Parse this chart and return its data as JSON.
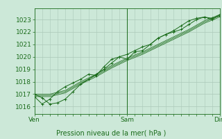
{
  "title": "",
  "xlabel": "Pression niveau de la mer( hPa )",
  "ylabel": "",
  "bg_color": "#cce8d8",
  "plot_bg_color": "#cce8d8",
  "grid_color": "#aac8b8",
  "line_color": "#1a6b1a",
  "tick_color": "#1a6b1a",
  "label_color": "#1a6b1a",
  "yticks": [
    1016,
    1017,
    1018,
    1019,
    1020,
    1021,
    1022,
    1023
  ],
  "ylim": [
    1015.4,
    1023.9
  ],
  "xlim": [
    0,
    48
  ],
  "xtick_positions": [
    0,
    24,
    48
  ],
  "xtick_labels": [
    "Ven",
    "Sam",
    "Dim"
  ],
  "series": [
    {
      "x": [
        0,
        2,
        4,
        6,
        8,
        10,
        12,
        14,
        16,
        18,
        20,
        22,
        24,
        26,
        28,
        30,
        32,
        34,
        36,
        38,
        40,
        42,
        44,
        46,
        48
      ],
      "y": [
        1017.0,
        1016.7,
        1016.2,
        1016.3,
        1016.6,
        1017.2,
        1017.8,
        1018.2,
        1018.6,
        1019.0,
        1019.5,
        1020.0,
        1019.8,
        1020.4,
        1020.5,
        1021.0,
        1021.5,
        1021.8,
        1022.1,
        1022.5,
        1022.9,
        1023.1,
        1023.2,
        1023.0,
        1023.4
      ],
      "marker": "+"
    },
    {
      "x": [
        0,
        2,
        4,
        6,
        8,
        10,
        12,
        14,
        16,
        18,
        20,
        22,
        24,
        26,
        28,
        30,
        32,
        34,
        36,
        38,
        40,
        42,
        44,
        46,
        48
      ],
      "y": [
        1016.8,
        1016.2,
        1016.6,
        1017.2,
        1017.6,
        1017.9,
        1018.2,
        1018.6,
        1018.5,
        1019.2,
        1019.8,
        1020.0,
        1020.2,
        1020.5,
        1020.8,
        1021.0,
        1021.5,
        1021.8,
        1022.0,
        1022.2,
        1022.6,
        1023.0,
        1023.2,
        1023.1,
        1023.3
      ],
      "marker": "+"
    },
    {
      "x": [
        0,
        4,
        8,
        12,
        16,
        20,
        24,
        28,
        32,
        36,
        40,
        44,
        48
      ],
      "y": [
        1016.9,
        1016.9,
        1017.2,
        1017.9,
        1018.5,
        1019.2,
        1019.8,
        1020.3,
        1020.9,
        1021.5,
        1022.1,
        1022.8,
        1023.3
      ],
      "marker": null
    },
    {
      "x": [
        0,
        4,
        8,
        12,
        16,
        20,
        24,
        28,
        32,
        36,
        40,
        44,
        48
      ],
      "y": [
        1016.8,
        1016.8,
        1017.1,
        1017.8,
        1018.4,
        1019.1,
        1019.7,
        1020.2,
        1020.8,
        1021.4,
        1022.0,
        1022.7,
        1023.2
      ],
      "marker": null
    },
    {
      "x": [
        0,
        4,
        8,
        12,
        16,
        20,
        24,
        28,
        32,
        36,
        40,
        44,
        48
      ],
      "y": [
        1017.0,
        1017.0,
        1017.3,
        1018.0,
        1018.6,
        1019.3,
        1019.9,
        1020.4,
        1021.0,
        1021.6,
        1022.2,
        1022.9,
        1023.4
      ],
      "marker": null
    }
  ]
}
